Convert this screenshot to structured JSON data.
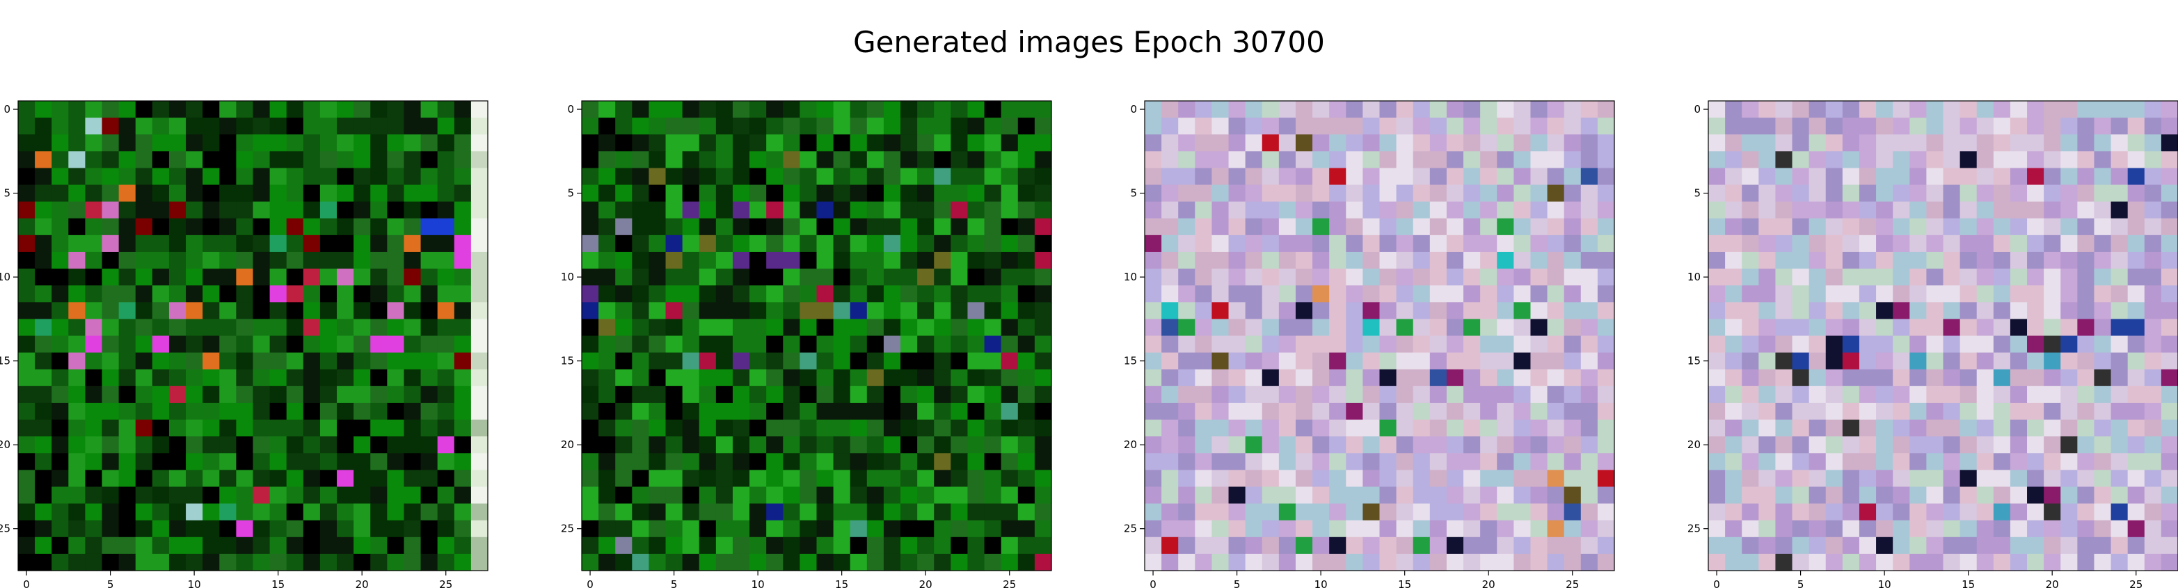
{
  "figure": {
    "title": "Generated images Epoch 30700"
  },
  "chart_data": [
    {
      "type": "heatmap",
      "title": "",
      "xlabel": "",
      "ylabel": "",
      "xlim": [
        -0.5,
        27.5
      ],
      "ylim": [
        27.5,
        -0.5
      ],
      "x_ticks": [
        0,
        5,
        10,
        15,
        20,
        25
      ],
      "y_ticks": [
        0,
        5,
        10,
        15,
        20,
        25
      ],
      "grid": false,
      "legend": "none",
      "size": [
        28,
        28
      ],
      "palette": "dark-green",
      "colors": [
        "#0b3a0b",
        "#0e5a0e",
        "#137a13",
        "#0a8a0a",
        "#1e9a1e",
        "#053005",
        "#000000",
        "#1f6f1f",
        "#0a1a0a"
      ],
      "accents": [
        "#c02040",
        "#1a3fd6",
        "#e040e0",
        "#e07020",
        "#a0d0d0",
        "#d070c0",
        "#7a0000",
        "#20a060"
      ],
      "edge_column": [
        "#c8d8c0",
        "#e0ecd8",
        "#a8c0a0",
        "#f0f4ec"
      ]
    },
    {
      "type": "heatmap",
      "title": "",
      "xlabel": "",
      "ylabel": "",
      "xlim": [
        -0.5,
        27.5
      ],
      "ylim": [
        27.5,
        -0.5
      ],
      "x_ticks": [
        0,
        5,
        10,
        15,
        20,
        25
      ],
      "y_ticks": [
        0,
        5,
        10,
        15,
        20,
        25
      ],
      "grid": false,
      "legend": "none",
      "size": [
        28,
        28
      ],
      "palette": "dark-green",
      "colors": [
        "#0b3a0b",
        "#0e5a0e",
        "#137a13",
        "#0a8a0a",
        "#22aa22",
        "#053005",
        "#000000",
        "#1f6f1f",
        "#0a1a0a"
      ],
      "accents": [
        "#b01040",
        "#10208a",
        "#5a2a8a",
        "#40a080",
        "#8080a0",
        "#6a6a20"
      ],
      "edge_column": []
    },
    {
      "type": "heatmap",
      "title": "",
      "xlabel": "",
      "ylabel": "",
      "xlim": [
        -0.5,
        27.5
      ],
      "ylim": [
        27.5,
        -0.5
      ],
      "x_ticks": [
        0,
        5,
        10,
        15,
        20,
        25
      ],
      "y_ticks": [
        0,
        5,
        10,
        15,
        20,
        25
      ],
      "grid": false,
      "legend": "none",
      "size": [
        28,
        28
      ],
      "palette": "pastel",
      "colors": [
        "#c8a8d8",
        "#b898d0",
        "#d8c8e0",
        "#a8c8d8",
        "#c0d8c8",
        "#e0c0d0",
        "#d0b0c8",
        "#b8b0e0",
        "#a090c8",
        "#e8e0ec"
      ],
      "accents": [
        "#20c0c0",
        "#101030",
        "#c01020",
        "#20a040",
        "#e09050",
        "#8a1a6a",
        "#605020",
        "#3050a0"
      ],
      "edge_column": []
    },
    {
      "type": "heatmap",
      "title": "",
      "xlabel": "",
      "ylabel": "",
      "xlim": [
        -0.5,
        27.5
      ],
      "ylim": [
        27.5,
        -0.5
      ],
      "x_ticks": [
        0,
        5,
        10,
        15,
        20,
        25
      ],
      "y_ticks": [
        0,
        5,
        10,
        15,
        20,
        25
      ],
      "grid": false,
      "legend": "none",
      "size": [
        28,
        28
      ],
      "palette": "pastel",
      "colors": [
        "#c8a8d8",
        "#b898d0",
        "#d8c8e0",
        "#a8c8d8",
        "#c0d8c8",
        "#e0c0d0",
        "#d0b0c8",
        "#b8b0e0",
        "#a090c8",
        "#e8e0ec"
      ],
      "accents": [
        "#101030",
        "#b01040",
        "#2040a0",
        "#303030",
        "#8a1a6a",
        "#40a0c0"
      ],
      "edge_column": []
    }
  ]
}
